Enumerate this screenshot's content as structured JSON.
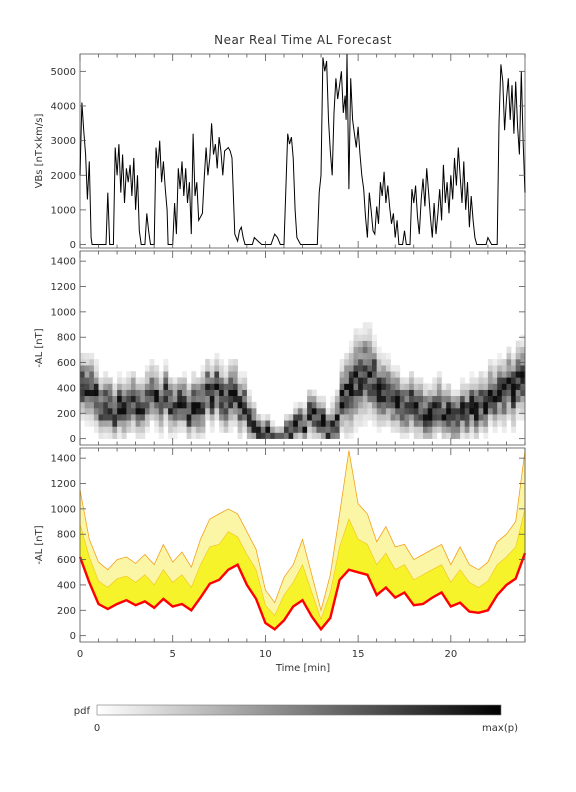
{
  "figure": {
    "title": "Near Real Time AL Forecast"
  },
  "chart_data": [
    {
      "type": "line",
      "panel": "top",
      "title": "Near Real Time AL Forecast",
      "xlabel": "",
      "ylabel": "VBs [nT×km/s]",
      "xlim": [
        0,
        24
      ],
      "ylim": [
        -100,
        5500
      ],
      "xticks": [
        0,
        5,
        10,
        15,
        20
      ],
      "yticks": [
        0,
        1000,
        2000,
        3000,
        4000,
        5000
      ],
      "ytick_labels": [
        "0",
        "1000",
        "2000",
        "3000",
        "4000",
        "5000"
      ],
      "series": [
        {
          "color": "#000000",
          "points": [
            [
              0.0,
              2000
            ],
            [
              0.1,
              4100
            ],
            [
              0.2,
              3300
            ],
            [
              0.3,
              2600
            ],
            [
              0.4,
              1300
            ],
            [
              0.5,
              2400
            ],
            [
              0.6,
              200
            ],
            [
              0.65,
              0
            ],
            [
              1.4,
              0
            ],
            [
              1.5,
              1500
            ],
            [
              1.6,
              0
            ],
            [
              1.8,
              0
            ],
            [
              1.9,
              2800
            ],
            [
              2.0,
              2000
            ],
            [
              2.1,
              2900
            ],
            [
              2.2,
              1500
            ],
            [
              2.3,
              2600
            ],
            [
              2.4,
              1200
            ],
            [
              2.5,
              2200
            ],
            [
              2.6,
              1800
            ],
            [
              2.7,
              2300
            ],
            [
              2.8,
              1400
            ],
            [
              2.9,
              2500
            ],
            [
              3.0,
              1000
            ],
            [
              3.1,
              2000
            ],
            [
              3.2,
              400
            ],
            [
              3.3,
              0
            ],
            [
              3.5,
              0
            ],
            [
              3.6,
              900
            ],
            [
              3.7,
              400
            ],
            [
              3.8,
              0
            ],
            [
              4.0,
              0
            ],
            [
              4.1,
              2800
            ],
            [
              4.2,
              2200
            ],
            [
              4.3,
              3000
            ],
            [
              4.4,
              1800
            ],
            [
              4.5,
              2400
            ],
            [
              4.6,
              1600
            ],
            [
              4.7,
              1000
            ],
            [
              4.75,
              0
            ],
            [
              5.0,
              0
            ],
            [
              5.1,
              1200
            ],
            [
              5.2,
              300
            ],
            [
              5.3,
              2200
            ],
            [
              5.4,
              1600
            ],
            [
              5.5,
              2400
            ],
            [
              5.6,
              1400
            ],
            [
              5.7,
              2200
            ],
            [
              5.8,
              1200
            ],
            [
              5.9,
              1800
            ],
            [
              6.0,
              300
            ],
            [
              6.1,
              3200
            ],
            [
              6.2,
              1400
            ],
            [
              6.3,
              1800
            ],
            [
              6.4,
              700
            ],
            [
              6.6,
              900
            ],
            [
              6.7,
              1900
            ],
            [
              6.8,
              2800
            ],
            [
              6.9,
              2000
            ],
            [
              7.0,
              2500
            ],
            [
              7.1,
              3500
            ],
            [
              7.2,
              2600
            ],
            [
              7.3,
              2900
            ],
            [
              7.4,
              2200
            ],
            [
              7.5,
              3100
            ],
            [
              7.6,
              2700
            ],
            [
              7.7,
              2000
            ],
            [
              7.8,
              2700
            ],
            [
              8.0,
              2800
            ],
            [
              8.1,
              2700
            ],
            [
              8.2,
              2500
            ],
            [
              8.35,
              300
            ],
            [
              8.5,
              100
            ],
            [
              8.6,
              400
            ],
            [
              8.7,
              500
            ],
            [
              8.8,
              200
            ],
            [
              8.9,
              0
            ],
            [
              9.3,
              0
            ],
            [
              9.4,
              200
            ],
            [
              9.6,
              100
            ],
            [
              9.8,
              0
            ],
            [
              10.3,
              0
            ],
            [
              10.5,
              300
            ],
            [
              10.65,
              200
            ],
            [
              10.8,
              0
            ],
            [
              11.0,
              0
            ],
            [
              11.2,
              3200
            ],
            [
              11.3,
              2900
            ],
            [
              11.4,
              3100
            ],
            [
              11.5,
              2500
            ],
            [
              11.6,
              1000
            ],
            [
              11.7,
              200
            ],
            [
              11.9,
              0
            ],
            [
              12.8,
              0
            ],
            [
              12.9,
              1500
            ],
            [
              13.0,
              2000
            ],
            [
              13.1,
              5400
            ],
            [
              13.2,
              5000
            ],
            [
              13.3,
              5300
            ],
            [
              13.4,
              3600
            ],
            [
              13.5,
              2700
            ],
            [
              13.6,
              2000
            ],
            [
              13.7,
              3800
            ],
            [
              13.8,
              4800
            ],
            [
              13.9,
              4200
            ],
            [
              14.0,
              4600
            ],
            [
              14.1,
              5000
            ],
            [
              14.2,
              3800
            ],
            [
              14.3,
              4300
            ],
            [
              14.35,
              3600
            ],
            [
              14.4,
              5500
            ],
            [
              14.5,
              1600
            ],
            [
              14.6,
              4800
            ],
            [
              14.7,
              3600
            ],
            [
              14.8,
              3200
            ],
            [
              14.9,
              2800
            ],
            [
              15.0,
              3400
            ],
            [
              15.1,
              2600
            ],
            [
              15.2,
              2000
            ],
            [
              15.3,
              1600
            ],
            [
              15.4,
              800
            ],
            [
              15.5,
              200
            ],
            [
              15.6,
              1500
            ],
            [
              15.7,
              1000
            ],
            [
              15.8,
              400
            ],
            [
              15.9,
              300
            ],
            [
              16.0,
              1100
            ],
            [
              16.1,
              600
            ],
            [
              16.2,
              1800
            ],
            [
              16.3,
              1400
            ],
            [
              16.4,
              2100
            ],
            [
              16.5,
              1200
            ],
            [
              16.6,
              1700
            ],
            [
              16.7,
              1100
            ],
            [
              16.8,
              600
            ],
            [
              16.9,
              900
            ],
            [
              17.0,
              200
            ],
            [
              17.1,
              700
            ],
            [
              17.2,
              0
            ],
            [
              17.4,
              0
            ],
            [
              17.5,
              400
            ],
            [
              17.6,
              0
            ],
            [
              17.8,
              0
            ],
            [
              17.9,
              1600
            ],
            [
              18.0,
              1200
            ],
            [
              18.1,
              1700
            ],
            [
              18.2,
              800
            ],
            [
              18.3,
              300
            ],
            [
              18.4,
              1300
            ],
            [
              18.5,
              1900
            ],
            [
              18.6,
              1100
            ],
            [
              18.7,
              2200
            ],
            [
              18.8,
              1500
            ],
            [
              18.9,
              800
            ],
            [
              19.0,
              200
            ],
            [
              19.1,
              1200
            ],
            [
              19.2,
              300
            ],
            [
              19.3,
              900
            ],
            [
              19.4,
              1600
            ],
            [
              19.5,
              700
            ],
            [
              19.6,
              2300
            ],
            [
              19.7,
              1200
            ],
            [
              19.8,
              1800
            ],
            [
              19.9,
              900
            ],
            [
              20.0,
              2000
            ],
            [
              20.1,
              1300
            ],
            [
              20.2,
              2500
            ],
            [
              20.3,
              1700
            ],
            [
              20.4,
              2800
            ],
            [
              20.5,
              2000
            ],
            [
              20.6,
              1200
            ],
            [
              20.7,
              2400
            ],
            [
              20.8,
              1000
            ],
            [
              20.9,
              1800
            ],
            [
              21.0,
              500
            ],
            [
              21.1,
              1400
            ],
            [
              21.2,
              700
            ],
            [
              21.3,
              200
            ],
            [
              21.4,
              0
            ],
            [
              21.9,
              0
            ],
            [
              22.0,
              200
            ],
            [
              22.2,
              0
            ],
            [
              22.5,
              0
            ],
            [
              22.6,
              3500
            ],
            [
              22.7,
              5200
            ],
            [
              22.8,
              4700
            ],
            [
              22.9,
              3300
            ],
            [
              23.0,
              4200
            ],
            [
              23.1,
              4800
            ],
            [
              23.2,
              3600
            ],
            [
              23.3,
              4600
            ],
            [
              23.4,
              3200
            ],
            [
              23.5,
              4700
            ],
            [
              23.6,
              3400
            ],
            [
              23.7,
              2600
            ],
            [
              23.8,
              5000
            ],
            [
              23.9,
              3000
            ],
            [
              24.0,
              1500
            ]
          ]
        }
      ]
    },
    {
      "type": "heatmap",
      "panel": "middle",
      "xlabel": "",
      "ylabel": "-AL [nT]",
      "xlim": [
        0,
        24
      ],
      "ylim": [
        -50,
        1480
      ],
      "xticks": [
        0,
        5,
        10,
        15,
        20
      ],
      "yticks": [
        0,
        200,
        400,
        600,
        800,
        1000,
        1200,
        1400
      ],
      "ytick_labels": [
        "0",
        "200",
        "400",
        "600",
        "800",
        "1000",
        "1200",
        "1400"
      ],
      "colormap": "grayscale, white to black",
      "x": [
        0.5,
        1.5,
        2.5,
        3.5,
        4.5,
        5.5,
        6.5,
        7.5,
        8.5,
        9.5,
        10.5,
        11.5,
        12.5,
        13.5,
        14.5,
        15.5,
        16.5,
        17.5,
        18.5,
        19.5,
        20.5,
        21.5,
        22.5,
        23.5
      ],
      "ridge_al": [
        420,
        230,
        250,
        300,
        320,
        240,
        300,
        380,
        300,
        120,
        30,
        60,
        180,
        40,
        450,
        470,
        330,
        250,
        200,
        230,
        180,
        260,
        350,
        420
      ],
      "spread_al": [
        220,
        200,
        200,
        200,
        200,
        180,
        220,
        220,
        220,
        140,
        80,
        120,
        160,
        150,
        300,
        320,
        220,
        200,
        200,
        200,
        180,
        200,
        220,
        260
      ]
    },
    {
      "type": "area",
      "panel": "bottom",
      "xlabel": "Time [min]",
      "ylabel": "-AL [nT]",
      "xlim": [
        0,
        24
      ],
      "ylim": [
        -50,
        1480
      ],
      "xticks": [
        0,
        5,
        10,
        15,
        20
      ],
      "xtick_labels": [
        "0",
        "5",
        "10",
        "15",
        "20"
      ],
      "yticks": [
        0,
        200,
        400,
        600,
        800,
        1000,
        1200,
        1400
      ],
      "ytick_labels": [
        "0",
        "200",
        "400",
        "600",
        "800",
        "1000",
        "1200",
        "1400"
      ],
      "band_color": "#f7f32a",
      "outer_band_color": "#fbf5a6",
      "envelope_color": "#f3a11d",
      "median_color": "#ff0000",
      "x": [
        0.0,
        0.5,
        1.0,
        1.5,
        2.0,
        2.5,
        3.0,
        3.5,
        4.0,
        4.5,
        5.0,
        5.5,
        6.0,
        6.5,
        7.0,
        7.5,
        8.0,
        8.5,
        9.0,
        9.5,
        10.0,
        10.5,
        11.0,
        11.5,
        12.0,
        12.5,
        13.0,
        13.5,
        14.0,
        14.5,
        15.0,
        15.5,
        16.0,
        16.5,
        17.0,
        17.5,
        18.0,
        18.5,
        19.0,
        19.5,
        20.0,
        20.5,
        21.0,
        21.5,
        22.0,
        22.5,
        23.0,
        23.5,
        24.0
      ],
      "median": [
        620,
        420,
        250,
        210,
        250,
        280,
        240,
        270,
        220,
        290,
        230,
        250,
        200,
        300,
        410,
        440,
        520,
        560,
        400,
        290,
        100,
        50,
        120,
        230,
        280,
        150,
        50,
        140,
        440,
        520,
        500,
        480,
        320,
        380,
        300,
        340,
        240,
        250,
        300,
        340,
        230,
        260,
        190,
        180,
        200,
        320,
        400,
        450,
        650
      ],
      "upper_band": [
        880,
        620,
        430,
        380,
        450,
        470,
        420,
        480,
        400,
        520,
        420,
        480,
        380,
        560,
        700,
        720,
        820,
        780,
        640,
        520,
        240,
        160,
        320,
        420,
        560,
        340,
        130,
        340,
        700,
        920,
        760,
        720,
        560,
        650,
        520,
        560,
        440,
        480,
        520,
        560,
        420,
        520,
        420,
        380,
        430,
        560,
        620,
        700,
        1000
      ],
      "upper_envelope": [
        1150,
        760,
        580,
        520,
        600,
        620,
        570,
        640,
        560,
        720,
        580,
        660,
        540,
        760,
        920,
        960,
        1000,
        960,
        820,
        680,
        360,
        260,
        460,
        560,
        760,
        480,
        200,
        480,
        960,
        1460,
        1040,
        960,
        740,
        860,
        700,
        720,
        600,
        640,
        680,
        720,
        560,
        700,
        560,
        520,
        580,
        740,
        800,
        900,
        1460
      ]
    }
  ],
  "colorbar": {
    "label": "pdf",
    "min_label": "0",
    "max_label": "max(p)",
    "from_color": "#ffffff",
    "to_color": "#000000"
  }
}
